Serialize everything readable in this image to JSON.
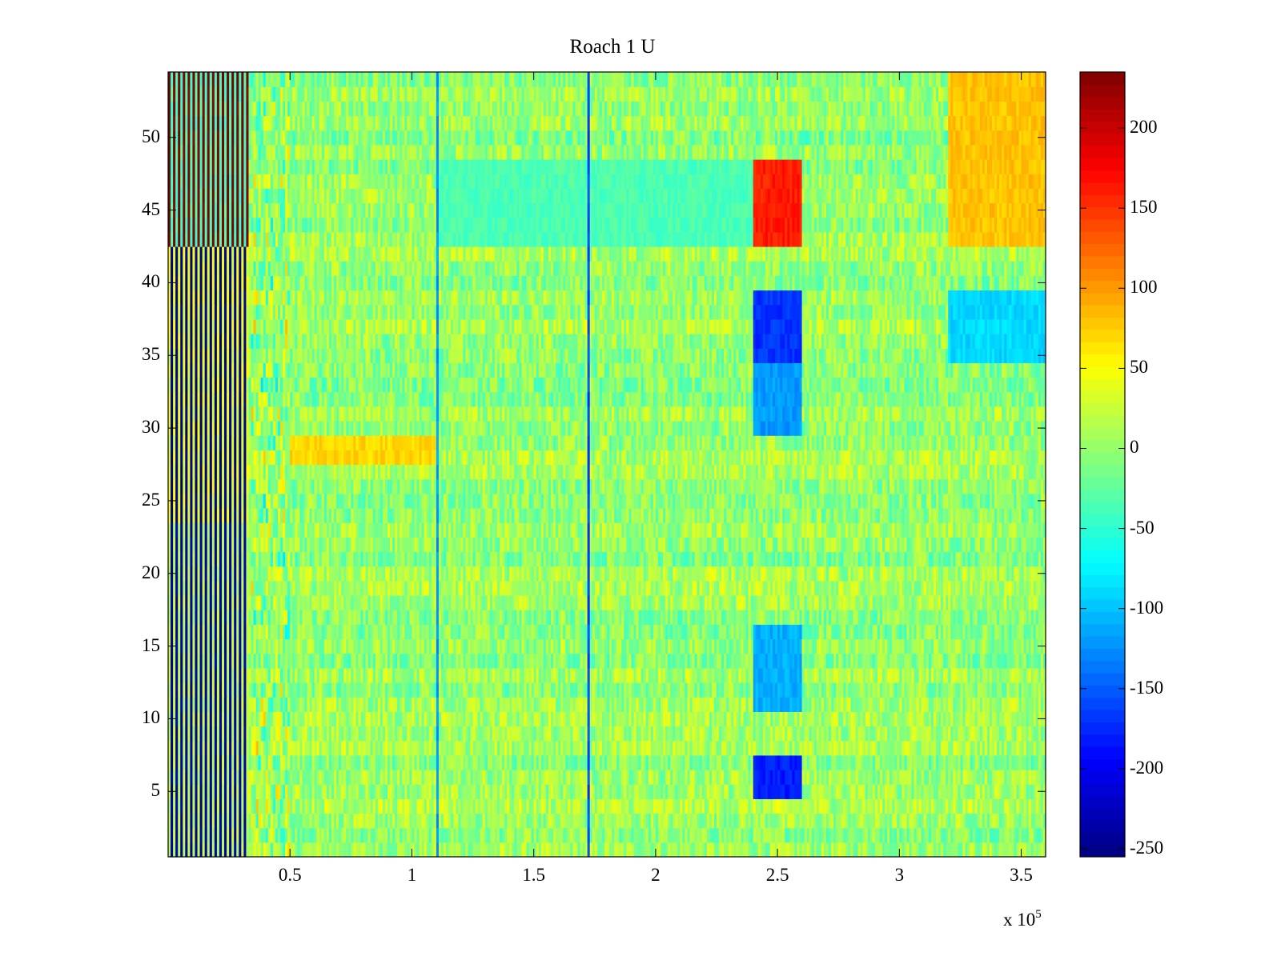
{
  "chart_data": {
    "type": "heatmap",
    "title": "Roach 1 U",
    "xlabel": "",
    "ylabel": "",
    "x_multiplier": "x 10",
    "x_multiplier_exponent": "5",
    "xlim": [
      0,
      3.6
    ],
    "ylim": [
      0.5,
      54.5
    ],
    "x_ticks": [
      0.5,
      1,
      1.5,
      2,
      2.5,
      3,
      3.5
    ],
    "x_tick_labels": [
      "0.5",
      "1",
      "1.5",
      "2",
      "2.5",
      "3",
      "3.5"
    ],
    "y_ticks": [
      5,
      10,
      15,
      20,
      25,
      30,
      35,
      40,
      45,
      50
    ],
    "y_tick_labels": [
      "5",
      "10",
      "15",
      "20",
      "25",
      "30",
      "35",
      "40",
      "45",
      "50"
    ],
    "n_rows": 54,
    "colormap": "jet",
    "clim": [
      -255,
      235
    ],
    "colorbar_ticks": [
      200,
      150,
      100,
      50,
      0,
      -50,
      -100,
      -150,
      -200,
      -250
    ],
    "colorbar_tick_labels": [
      "200",
      "150",
      "100",
      "50",
      "0",
      "-50",
      "-100",
      "-150",
      "-200",
      "-250"
    ],
    "baseline_value": 0,
    "features": [
      {
        "name": "onset-oscillation",
        "x_range": [
          0.0,
          0.33
        ],
        "row_groups": [
          {
            "rows": [
              43,
              54
            ],
            "high": 235,
            "low": -40
          },
          {
            "rows": [
              24,
              42
            ],
            "high": 40,
            "low": -240
          },
          {
            "rows": [
              1,
              23
            ],
            "high": 20,
            "low": -230
          }
        ]
      },
      {
        "name": "warm-band-left",
        "x_range": [
          0.5,
          1.1
        ],
        "rows": [
          28,
          29
        ],
        "value": 70
      },
      {
        "name": "cool-patch-top",
        "x_range": [
          1.1,
          2.4
        ],
        "rows": [
          43,
          48
        ],
        "value": -35
      },
      {
        "name": "hot-block",
        "x_range": [
          2.4,
          2.6
        ],
        "rows": [
          43,
          48
        ],
        "value": 160
      },
      {
        "name": "cold-block-1",
        "x_range": [
          2.4,
          2.6
        ],
        "rows": [
          35,
          39
        ],
        "value": -170
      },
      {
        "name": "cold-block-2",
        "x_range": [
          2.4,
          2.6
        ],
        "rows": [
          30,
          34
        ],
        "value": -120
      },
      {
        "name": "cold-block-3",
        "x_range": [
          2.4,
          2.6
        ],
        "rows": [
          11,
          16
        ],
        "value": -110
      },
      {
        "name": "cold-block-4",
        "x_range": [
          2.4,
          2.6
        ],
        "rows": [
          5,
          7
        ],
        "value": -180
      },
      {
        "name": "warm-block-right",
        "x_range": [
          3.2,
          3.6
        ],
        "rows": [
          43,
          54
        ],
        "value": 80
      },
      {
        "name": "cool-block-right",
        "x_range": [
          3.2,
          3.6
        ],
        "rows": [
          35,
          39
        ],
        "value": -90
      },
      {
        "name": "vertical-line-1",
        "x_range": [
          1.1,
          1.11
        ],
        "rows": [
          1,
          54
        ],
        "value": -120
      },
      {
        "name": "vertical-line-2",
        "x_range": [
          1.72,
          1.73
        ],
        "rows": [
          1,
          54
        ],
        "value": -160
      }
    ]
  }
}
